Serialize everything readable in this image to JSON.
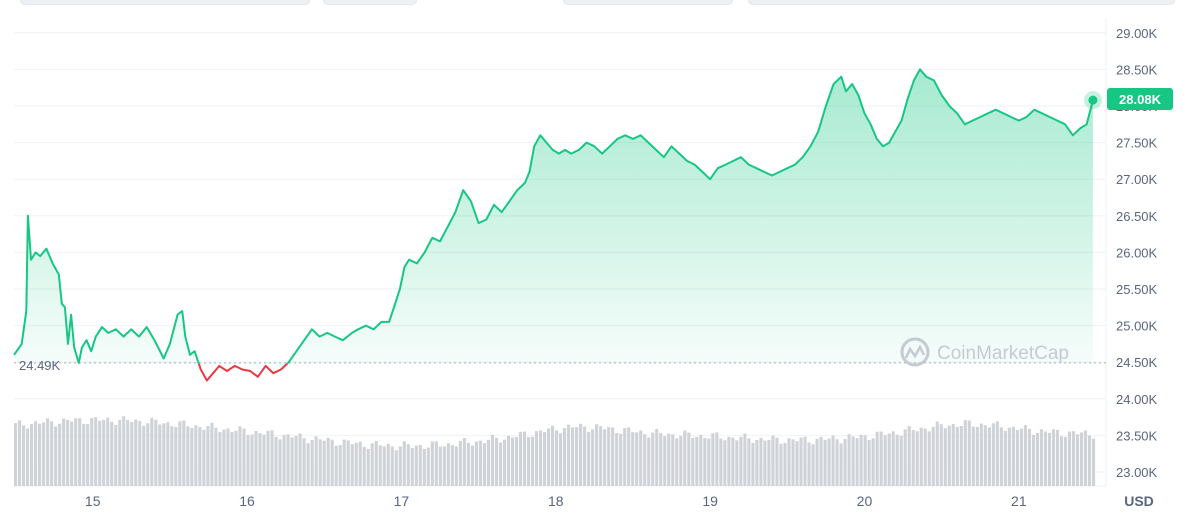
{
  "chart_data": {
    "type": "area",
    "currency_label": "USD",
    "y_ticks": [
      "29.00K",
      "28.50K",
      "28.00K",
      "27.50K",
      "27.00K",
      "26.50K",
      "26.00K",
      "25.50K",
      "25.00K",
      "24.50K",
      "24.00K",
      "23.50K",
      "23.00K"
    ],
    "y_tick_values": [
      29000,
      28500,
      28000,
      27500,
      27000,
      26500,
      26000,
      25500,
      25000,
      24500,
      24000,
      23500,
      23000
    ],
    "ylim": [
      23000,
      29000
    ],
    "x_ticks": [
      "15",
      "16",
      "17",
      "18",
      "19",
      "20",
      "21"
    ],
    "x_tick_values": [
      15,
      16,
      17,
      18,
      19,
      20,
      21
    ],
    "xlim": [
      14.49,
      21.5
    ],
    "baseline_value": 24490,
    "baseline_label": "24.49K",
    "current_value": 28080,
    "current_label": "28.08K",
    "colors": {
      "up": "#16c784",
      "down": "#ea3943",
      "volume": "#cfd3d8"
    },
    "watermark": "CoinMarketCap",
    "series": [
      {
        "values": [
          [
            14.49,
            24600
          ],
          [
            14.54,
            24750
          ],
          [
            14.57,
            25200
          ],
          [
            14.58,
            26500
          ],
          [
            14.6,
            25900
          ],
          [
            14.63,
            26000
          ],
          [
            14.66,
            25950
          ],
          [
            14.7,
            26050
          ],
          [
            14.74,
            25850
          ],
          [
            14.78,
            25700
          ],
          [
            14.8,
            25300
          ],
          [
            14.82,
            25250
          ],
          [
            14.84,
            24750
          ],
          [
            14.86,
            25150
          ],
          [
            14.88,
            24700
          ],
          [
            14.91,
            24490
          ],
          [
            14.93,
            24700
          ],
          [
            14.96,
            24800
          ],
          [
            14.99,
            24650
          ],
          [
            15.02,
            24850
          ],
          [
            15.06,
            24980
          ],
          [
            15.1,
            24900
          ],
          [
            15.15,
            24950
          ],
          [
            15.2,
            24850
          ],
          [
            15.25,
            24950
          ],
          [
            15.3,
            24850
          ],
          [
            15.35,
            24980
          ],
          [
            15.4,
            24800
          ],
          [
            15.46,
            24550
          ],
          [
            15.5,
            24750
          ],
          [
            15.55,
            25150
          ],
          [
            15.58,
            25200
          ],
          [
            15.6,
            24850
          ],
          [
            15.63,
            24600
          ],
          [
            15.66,
            24650
          ],
          [
            15.7,
            24400
          ],
          [
            15.74,
            24250
          ],
          [
            15.78,
            24350
          ],
          [
            15.82,
            24450
          ],
          [
            15.87,
            24380
          ],
          [
            15.92,
            24450
          ],
          [
            15.97,
            24400
          ],
          [
            16.02,
            24380
          ],
          [
            16.07,
            24300
          ],
          [
            16.12,
            24450
          ],
          [
            16.17,
            24350
          ],
          [
            16.22,
            24400
          ],
          [
            16.27,
            24500
          ],
          [
            16.32,
            24650
          ],
          [
            16.37,
            24800
          ],
          [
            16.42,
            24950
          ],
          [
            16.47,
            24850
          ],
          [
            16.52,
            24900
          ],
          [
            16.57,
            24850
          ],
          [
            16.62,
            24800
          ],
          [
            16.68,
            24900
          ],
          [
            16.72,
            24950
          ],
          [
            16.77,
            25000
          ],
          [
            16.82,
            24950
          ],
          [
            16.87,
            25050
          ],
          [
            16.92,
            25050
          ],
          [
            16.96,
            25300
          ],
          [
            16.99,
            25500
          ],
          [
            17.02,
            25800
          ],
          [
            17.05,
            25900
          ],
          [
            17.1,
            25850
          ],
          [
            17.15,
            26000
          ],
          [
            17.2,
            26200
          ],
          [
            17.25,
            26150
          ],
          [
            17.3,
            26350
          ],
          [
            17.35,
            26550
          ],
          [
            17.4,
            26850
          ],
          [
            17.45,
            26700
          ],
          [
            17.5,
            26400
          ],
          [
            17.55,
            26450
          ],
          [
            17.6,
            26650
          ],
          [
            17.65,
            26550
          ],
          [
            17.7,
            26700
          ],
          [
            17.75,
            26850
          ],
          [
            17.8,
            26950
          ],
          [
            17.83,
            27100
          ],
          [
            17.86,
            27450
          ],
          [
            17.9,
            27600
          ],
          [
            17.94,
            27500
          ],
          [
            17.98,
            27400
          ],
          [
            18.02,
            27350
          ],
          [
            18.06,
            27400
          ],
          [
            18.1,
            27350
          ],
          [
            18.15,
            27400
          ],
          [
            18.2,
            27500
          ],
          [
            18.25,
            27450
          ],
          [
            18.3,
            27350
          ],
          [
            18.35,
            27450
          ],
          [
            18.4,
            27550
          ],
          [
            18.45,
            27600
          ],
          [
            18.5,
            27550
          ],
          [
            18.55,
            27600
          ],
          [
            18.6,
            27500
          ],
          [
            18.65,
            27400
          ],
          [
            18.7,
            27300
          ],
          [
            18.75,
            27450
          ],
          [
            18.8,
            27350
          ],
          [
            18.85,
            27250
          ],
          [
            18.9,
            27200
          ],
          [
            18.95,
            27100
          ],
          [
            19.0,
            27000
          ],
          [
            19.05,
            27150
          ],
          [
            19.1,
            27200
          ],
          [
            19.15,
            27250
          ],
          [
            19.2,
            27300
          ],
          [
            19.25,
            27200
          ],
          [
            19.3,
            27150
          ],
          [
            19.35,
            27100
          ],
          [
            19.4,
            27050
          ],
          [
            19.45,
            27100
          ],
          [
            19.5,
            27150
          ],
          [
            19.55,
            27200
          ],
          [
            19.6,
            27300
          ],
          [
            19.65,
            27450
          ],
          [
            19.7,
            27650
          ],
          [
            19.75,
            28000
          ],
          [
            19.8,
            28300
          ],
          [
            19.85,
            28400
          ],
          [
            19.88,
            28200
          ],
          [
            19.92,
            28300
          ],
          [
            19.96,
            28150
          ],
          [
            20.0,
            27900
          ],
          [
            20.04,
            27750
          ],
          [
            20.08,
            27550
          ],
          [
            20.12,
            27450
          ],
          [
            20.16,
            27500
          ],
          [
            20.2,
            27650
          ],
          [
            20.24,
            27800
          ],
          [
            20.28,
            28100
          ],
          [
            20.32,
            28350
          ],
          [
            20.36,
            28500
          ],
          [
            20.4,
            28400
          ],
          [
            20.45,
            28350
          ],
          [
            20.5,
            28150
          ],
          [
            20.55,
            28000
          ],
          [
            20.6,
            27900
          ],
          [
            20.65,
            27750
          ],
          [
            20.7,
            27800
          ],
          [
            20.75,
            27850
          ],
          [
            20.8,
            27900
          ],
          [
            20.85,
            27950
          ],
          [
            20.9,
            27900
          ],
          [
            20.95,
            27850
          ],
          [
            21.0,
            27800
          ],
          [
            21.05,
            27850
          ],
          [
            21.1,
            27950
          ],
          [
            21.15,
            27900
          ],
          [
            21.2,
            27850
          ],
          [
            21.25,
            27800
          ],
          [
            21.3,
            27750
          ],
          [
            21.35,
            27600
          ],
          [
            21.4,
            27700
          ],
          [
            21.44,
            27750
          ],
          [
            21.48,
            28080
          ]
        ]
      }
    ]
  }
}
